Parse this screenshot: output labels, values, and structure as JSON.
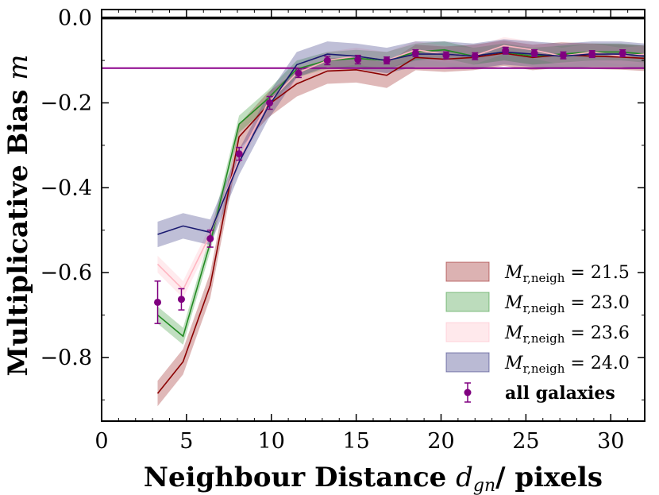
{
  "chart_data": {
    "type": "line",
    "title": "",
    "xlabel": "Neighbour Distance d_gn/ pixels",
    "xlabel_main": "Neighbour Distance ",
    "xlabel_sym": "d",
    "xlabel_sub": "gn",
    "xlabel_tail": "/ pixels",
    "ylabel": "Multiplicative Bias m",
    "ylabel_main": "Multiplicative Bias ",
    "ylabel_sym": "m",
    "xlim": [
      0,
      32
    ],
    "ylim": [
      -0.95,
      0.02
    ],
    "xticks": [
      0,
      5,
      10,
      15,
      20,
      25,
      30
    ],
    "xtick_labels": [
      "0",
      "5",
      "10",
      "15",
      "20",
      "25",
      "30"
    ],
    "yticks": [
      0.0,
      -0.2,
      -0.4,
      -0.6,
      -0.8
    ],
    "ytick_labels": [
      "0.0",
      "−0.2",
      "−0.4",
      "−0.6",
      "−0.8"
    ],
    "reference_lines": [
      {
        "name": "zero-line",
        "y": 0.0,
        "color": "#000000"
      },
      {
        "name": "mean-bias-line",
        "y": -0.118,
        "color": "#8b008b"
      }
    ],
    "legend_position": "lower-right",
    "series": [
      {
        "name": "M_r,neigh = 21.5",
        "label_sym": "M",
        "label_sub": "r,neigh",
        "label_val": " = 21.5",
        "color": "#8b0000",
        "x": [
          3.3,
          4.8,
          6.4,
          8.1,
          9.8,
          11.5,
          13.3,
          15.0,
          16.8,
          18.5,
          20.2,
          21.9,
          23.7,
          25.4,
          27.1,
          28.9,
          30.6,
          32.0
        ],
        "values": [
          -0.885,
          -0.81,
          -0.63,
          -0.28,
          -0.205,
          -0.155,
          -0.125,
          -0.122,
          -0.135,
          -0.093,
          -0.097,
          -0.093,
          -0.083,
          -0.093,
          -0.087,
          -0.09,
          -0.092,
          -0.095
        ],
        "band": 0.03
      },
      {
        "name": "M_r,neigh = 23.0",
        "label_sym": "M",
        "label_sub": "r,neigh",
        "label_val": " = 23.0",
        "color": "#228b22",
        "x": [
          3.3,
          4.8,
          6.4,
          8.1,
          9.8,
          11.5,
          13.3,
          15.0,
          16.8,
          18.5,
          20.2,
          21.9,
          23.7,
          25.4,
          27.1,
          28.9,
          30.6,
          32.0
        ],
        "values": [
          -0.7,
          -0.75,
          -0.53,
          -0.25,
          -0.19,
          -0.12,
          -0.1,
          -0.095,
          -0.1,
          -0.08,
          -0.075,
          -0.09,
          -0.08,
          -0.09,
          -0.085,
          -0.08,
          -0.08,
          -0.085
        ],
        "band": 0.02
      },
      {
        "name": "M_r,neigh = 23.6",
        "label_sym": "M",
        "label_sub": "r,neigh",
        "label_val": " = 23.6",
        "color": "#ffb6c1",
        "x": [
          3.3,
          4.8,
          6.4,
          8.1,
          9.8,
          11.5,
          13.3,
          15.0,
          16.8,
          18.5,
          20.2,
          21.9,
          23.7,
          25.4,
          27.1,
          28.9,
          30.6,
          32.0
        ],
        "values": [
          -0.58,
          -0.64,
          -0.51,
          -0.33,
          -0.2,
          -0.13,
          -0.1,
          -0.09,
          -0.1,
          -0.075,
          -0.085,
          -0.09,
          -0.065,
          -0.075,
          -0.09,
          -0.08,
          -0.09,
          -0.085
        ],
        "band": 0.02
      },
      {
        "name": "M_r,neigh = 24.0",
        "label_sym": "M",
        "label_sub": "r,neigh",
        "label_val": " = 24.0",
        "color": "#191970",
        "x": [
          3.3,
          4.8,
          6.4,
          8.1,
          9.8,
          11.5,
          13.3,
          15.0,
          16.8,
          18.5,
          20.2,
          21.9,
          23.7,
          25.4,
          27.1,
          28.9,
          30.6,
          32.0
        ],
        "values": [
          -0.51,
          -0.49,
          -0.505,
          -0.34,
          -0.21,
          -0.11,
          -0.085,
          -0.09,
          -0.1,
          -0.085,
          -0.085,
          -0.09,
          -0.08,
          -0.085,
          -0.09,
          -0.085,
          -0.085,
          -0.09
        ],
        "band": 0.03
      }
    ],
    "points": {
      "name": "all galaxies",
      "color": "#800080",
      "x": [
        3.3,
        4.7,
        6.4,
        8.1,
        9.9,
        11.6,
        13.3,
        15.1,
        16.8,
        18.5,
        20.3,
        22.0,
        23.8,
        25.5,
        27.2,
        28.9,
        30.7
      ],
      "y": [
        -0.67,
        -0.663,
        -0.52,
        -0.32,
        -0.2,
        -0.13,
        -0.1,
        -0.098,
        -0.1,
        -0.083,
        -0.088,
        -0.09,
        -0.077,
        -0.083,
        -0.088,
        -0.085,
        -0.083
      ],
      "err": [
        0.05,
        0.025,
        0.02,
        0.015,
        0.015,
        0.01,
        0.01,
        0.01,
        0.008,
        0.008,
        0.008,
        0.008,
        0.008,
        0.008,
        0.008,
        0.008,
        0.008
      ]
    }
  }
}
